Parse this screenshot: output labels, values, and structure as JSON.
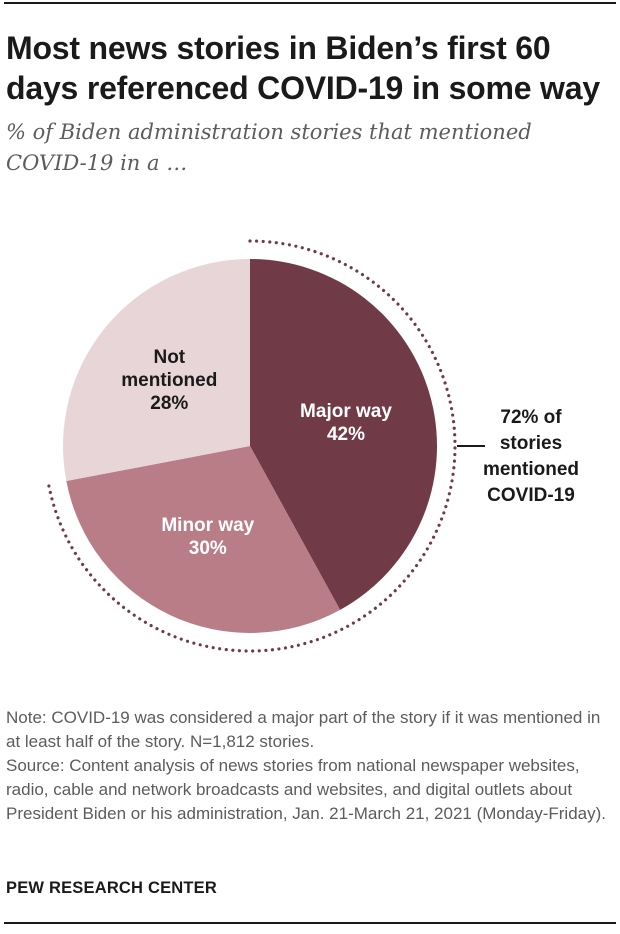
{
  "title": "Most news stories in Biden’s first 60 days referenced COVID-19 in some way",
  "subtitle": "% of Biden administration stories that mentioned COVID-19 in a …",
  "chart_data": {
    "type": "pie",
    "title": "Most news stories in Biden’s first 60 days referenced COVID-19 in some way",
    "subtitle": "% of Biden administration stories that mentioned COVID-19 in a …",
    "slices": [
      {
        "label": [
          "Major way"
        ],
        "value": 42,
        "display": "42%",
        "color": "#713a47",
        "text_color": "#ffffff"
      },
      {
        "label": [
          "Minor way"
        ],
        "value": 30,
        "display": "30%",
        "color": "#b97d87",
        "text_color": "#ffffff"
      },
      {
        "label": [
          "Not",
          "mentioned"
        ],
        "value": 28,
        "display": "28%",
        "color": "#e8d5d8",
        "text_color": "#1a1a1a"
      }
    ],
    "annotation": {
      "lines": [
        "72% of",
        "stories",
        "mentioned",
        "COVID-19"
      ],
      "value": 72,
      "spans": [
        "Major way",
        "Minor way"
      ]
    },
    "bracket_color": "#713a47"
  },
  "notes": {
    "note": "Note: COVID-19 was considered a major part of the story if it was mentioned in at least half of the story. N=1,812 stories.",
    "source": "Source: Content analysis of news stories from national newspaper websites, radio, cable and network broadcasts and websites, and digital outlets about President Biden or his administration, Jan. 21-March 21, 2021 (Monday-Friday)."
  },
  "source_org": "PEW RESEARCH CENTER"
}
